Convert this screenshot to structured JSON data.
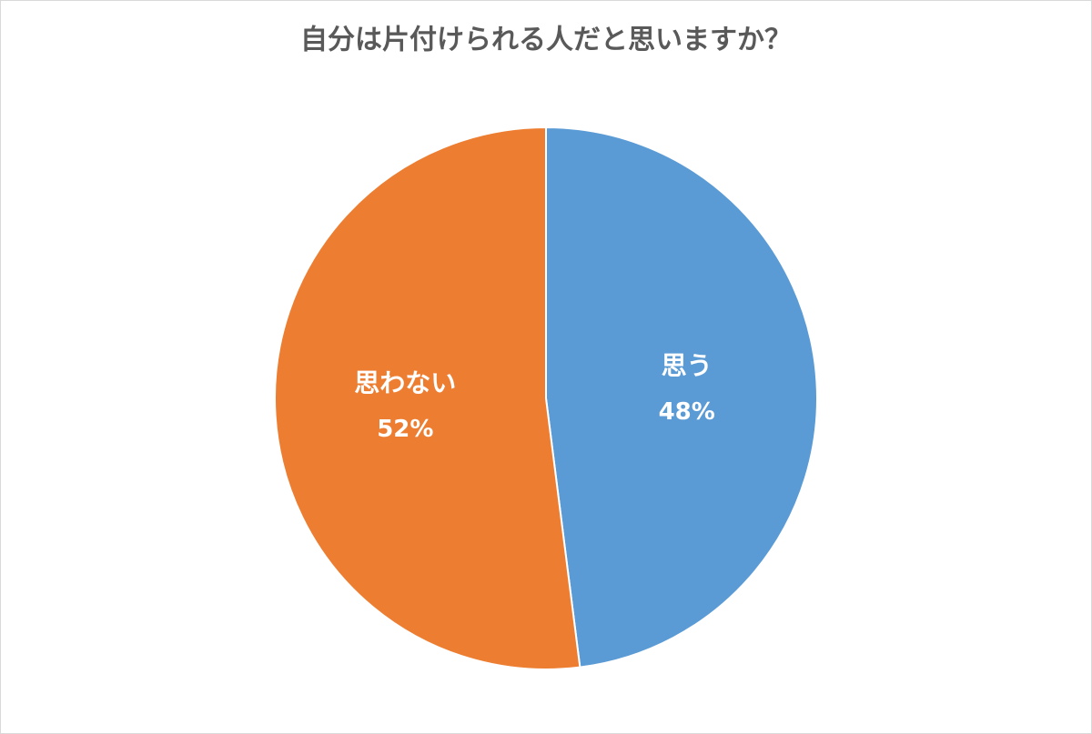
{
  "chart_data": {
    "type": "pie",
    "title": "自分は片付けられる人だと思いますか？",
    "categories": [
      "思う",
      "思わない"
    ],
    "values": [
      48,
      52
    ],
    "value_labels": [
      "48%",
      "52%"
    ],
    "colors": [
      "#5b9bd5",
      "#ed7d31"
    ]
  }
}
